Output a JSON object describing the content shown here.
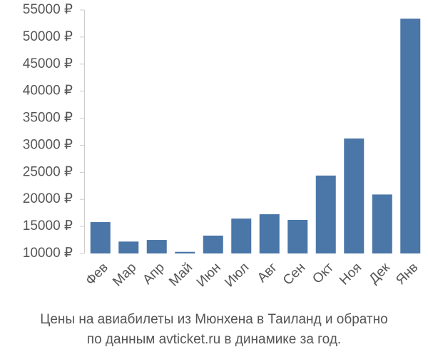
{
  "chart_data": {
    "type": "bar",
    "title_lines": [
      "Цены на авиабилеты из Мюнхена в Таиланд и обратно",
      "по данным avticket.ru в динамике за год."
    ],
    "categories": [
      "Фев",
      "Мар",
      "Апр",
      "Май",
      "Июн",
      "Июл",
      "Авг",
      "Сен",
      "Окт",
      "Ноя",
      "Дек",
      "Янв"
    ],
    "values": [
      15800,
      12200,
      12500,
      10300,
      13300,
      16450,
      17250,
      16200,
      24400,
      31250,
      20900,
      53400
    ],
    "color": "#4a76a8",
    "ylim": [
      10000,
      55000
    ],
    "yticks": [
      {
        "value": 10000,
        "label": "10000 ₽"
      },
      {
        "value": 15000,
        "label": "15000 ₽"
      },
      {
        "value": 20000,
        "label": "20000 ₽"
      },
      {
        "value": 25000,
        "label": "25000 ₽"
      },
      {
        "value": 30000,
        "label": "30000 ₽"
      },
      {
        "value": 35000,
        "label": "35000 ₽"
      },
      {
        "value": 40000,
        "label": "40000 ₽"
      },
      {
        "value": 45000,
        "label": "45000 ₽"
      },
      {
        "value": 50000,
        "label": "50000 ₽"
      },
      {
        "value": 55000,
        "label": "55000 ₽"
      }
    ],
    "grid": false
  }
}
